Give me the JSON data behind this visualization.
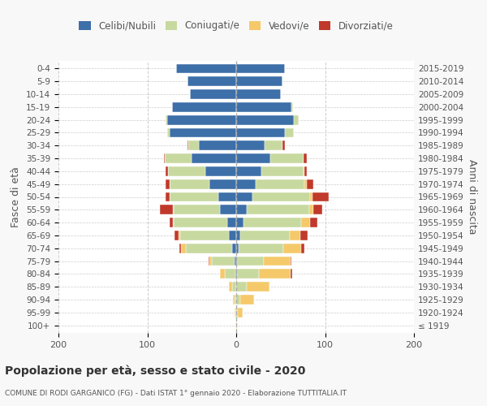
{
  "age_groups": [
    "100+",
    "95-99",
    "90-94",
    "85-89",
    "80-84",
    "75-79",
    "70-74",
    "65-69",
    "60-64",
    "55-59",
    "50-54",
    "45-49",
    "40-44",
    "35-39",
    "30-34",
    "25-29",
    "20-24",
    "15-19",
    "10-14",
    "5-9",
    "0-4"
  ],
  "birth_years": [
    "≤ 1919",
    "1920-1924",
    "1925-1929",
    "1930-1934",
    "1935-1939",
    "1940-1944",
    "1945-1949",
    "1950-1954",
    "1955-1959",
    "1960-1964",
    "1965-1969",
    "1970-1974",
    "1975-1979",
    "1980-1984",
    "1985-1989",
    "1990-1994",
    "1995-1999",
    "2000-2004",
    "2005-2009",
    "2010-2014",
    "2015-2019"
  ],
  "colors": {
    "celibi": "#3d6fa8",
    "coniugati": "#c8d9a0",
    "vedovi": "#f5c96a",
    "divorziati": "#c0392b"
  },
  "males": {
    "celibi": [
      0,
      0,
      0,
      0,
      1,
      2,
      5,
      8,
      10,
      18,
      20,
      30,
      35,
      50,
      42,
      75,
      78,
      72,
      52,
      55,
      68
    ],
    "coniugati": [
      0,
      1,
      2,
      5,
      12,
      25,
      52,
      55,
      60,
      52,
      55,
      45,
      42,
      30,
      12,
      3,
      1,
      0,
      0,
      0,
      0
    ],
    "vedovi": [
      0,
      1,
      2,
      3,
      5,
      3,
      5,
      2,
      1,
      1,
      0,
      0,
      0,
      0,
      0,
      0,
      0,
      0,
      0,
      0,
      0
    ],
    "divorziati": [
      0,
      0,
      0,
      0,
      0,
      1,
      2,
      4,
      4,
      15,
      4,
      4,
      2,
      1,
      1,
      0,
      0,
      0,
      0,
      0,
      0
    ]
  },
  "females": {
    "celibi": [
      0,
      0,
      0,
      0,
      1,
      1,
      3,
      5,
      8,
      12,
      18,
      22,
      28,
      38,
      32,
      55,
      65,
      62,
      50,
      52,
      55
    ],
    "coniugati": [
      0,
      2,
      5,
      12,
      25,
      30,
      50,
      55,
      65,
      70,
      65,
      55,
      48,
      38,
      20,
      10,
      5,
      2,
      0,
      0,
      0
    ],
    "vedovi": [
      1,
      5,
      15,
      25,
      35,
      30,
      20,
      12,
      10,
      5,
      3,
      2,
      1,
      0,
      0,
      0,
      0,
      0,
      0,
      0,
      0
    ],
    "divorziati": [
      0,
      0,
      0,
      0,
      2,
      1,
      4,
      8,
      8,
      10,
      18,
      8,
      2,
      3,
      3,
      0,
      0,
      0,
      0,
      0,
      0
    ]
  },
  "xlim": 200,
  "title": "Popolazione per età, sesso e stato civile - 2020",
  "subtitle": "COMUNE DI RODI GARGANICO (FG) - Dati ISTAT 1° gennaio 2020 - Elaborazione TUTTITALIA.IT",
  "ylabel_left": "Fasce di età",
  "ylabel_right": "Anni di nascita",
  "bg_color": "#f8f8f8",
  "plot_bg_color": "#ffffff"
}
